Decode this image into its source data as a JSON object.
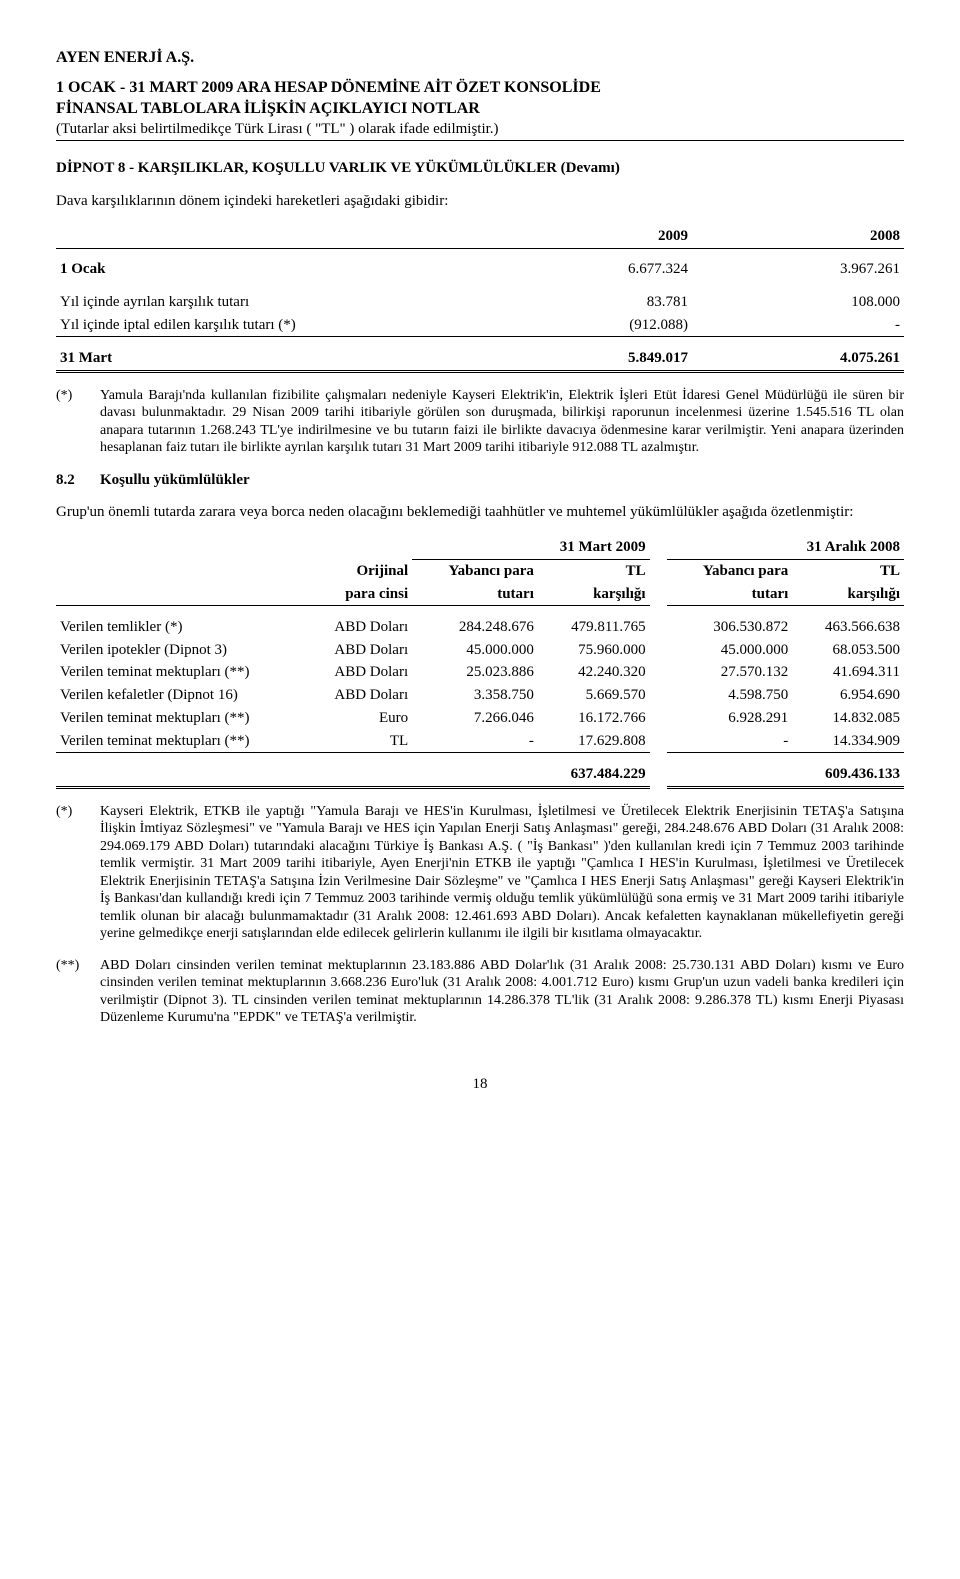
{
  "header": {
    "company": "AYEN ENERJİ A.Ş.",
    "line1": "1 OCAK - 31 MART 2009 ARA HESAP DÖNEMİNE AİT ÖZET KONSOLİDE",
    "line2": "FİNANSAL TABLOLARA İLİŞKİN AÇIKLAYICI NOTLAR",
    "note": "(Tutarlar aksi belirtilmedikçe Türk Lirası ( \"TL\" ) olarak ifade edilmiştir.)"
  },
  "section": {
    "heading": "DİPNOT 8 - KARŞILIKLAR, KOŞULLU VARLIK VE YÜKÜMLÜLÜKLER (Devamı)",
    "intro": "Dava karşılıklarının dönem içindeki hareketleri aşağıdaki gibidir:"
  },
  "tbl1": {
    "col2009": "2009",
    "col2008": "2008",
    "r1": {
      "label": "1 Ocak",
      "a": "6.677.324",
      "b": "3.967.261"
    },
    "r2": {
      "label": "Yıl içinde ayrılan karşılık tutarı",
      "a": "83.781",
      "b": "108.000"
    },
    "r3": {
      "label": "Yıl içinde iptal edilen karşılık tutarı (*)",
      "a": "(912.088)",
      "b": "-"
    },
    "r4": {
      "label": "31 Mart",
      "a": "5.849.017",
      "b": "4.075.261"
    }
  },
  "footnote1": {
    "marker": "(*)",
    "text": "Yamula Barajı'nda kullanılan fizibilite çalışmaları nedeniyle Kayseri Elektrik'in, Elektrik İşleri Etüt İdaresi Genel Müdürlüğü ile süren bir davası bulunmaktadır. 29 Nisan 2009 tarihi itibariyle görülen son duruşmada, bilirkişi raporunun incelenmesi üzerine 1.545.516 TL olan anapara tutarının 1.268.243 TL'ye indirilmesine ve bu tutarın faizi ile birlikte davacıya ödenmesine karar verilmiştir. Yeni anapara üzerinden hesaplanan faiz tutarı ile birlikte ayrılan karşılık tutarı 31 Mart 2009 tarihi itibariyle 912.088 TL azalmıştır."
  },
  "sub8_2": {
    "num": "8.2",
    "title": "Koşullu yükümlülükler",
    "intro": "Grup'un önemli tutarda zarara veya borca neden olacağını beklemediği taahhütler ve muhtemel yükümlülükler aşağıda özetlenmiştir:"
  },
  "tbl2": {
    "period1": "31 Mart 2009",
    "period2": "31 Aralık 2008",
    "h_orij1": "Orijinal",
    "h_orij2": "para cinsi",
    "h_yp1": "Yabancı para",
    "h_yp2": "tutarı",
    "h_tl1": "TL",
    "h_tl2": "karşılığı",
    "rows": [
      {
        "label": "Verilen temlikler (*)",
        "cur": "ABD Doları",
        "a": "284.248.676",
        "b": "479.811.765",
        "c": "306.530.872",
        "d": "463.566.638"
      },
      {
        "label": "Verilen ipotekler (Dipnot 3)",
        "cur": "ABD Doları",
        "a": "45.000.000",
        "b": "75.960.000",
        "c": "45.000.000",
        "d": "68.053.500"
      },
      {
        "label": "Verilen teminat mektupları (**)",
        "cur": "ABD Doları",
        "a": "25.023.886",
        "b": "42.240.320",
        "c": "27.570.132",
        "d": "41.694.311"
      },
      {
        "label": "Verilen kefaletler (Dipnot 16)",
        "cur": "ABD Doları",
        "a": "3.358.750",
        "b": "5.669.570",
        "c": "4.598.750",
        "d": "6.954.690"
      },
      {
        "label": "Verilen teminat mektupları (**)",
        "cur": "Euro",
        "a": "7.266.046",
        "b": "16.172.766",
        "c": "6.928.291",
        "d": "14.832.085"
      },
      {
        "label": "Verilen teminat mektupları (**)",
        "cur": "TL",
        "a": "-",
        "b": "17.629.808",
        "c": "-",
        "d": "14.334.909"
      }
    ],
    "totals": {
      "b": "637.484.229",
      "d": "609.436.133"
    }
  },
  "footnote2": {
    "marker": "(*)",
    "text": "Kayseri Elektrik, ETKB ile yaptığı \"Yamula Barajı ve HES'in Kurulması, İşletilmesi ve Üretilecek Elektrik Enerjisinin TETAŞ'a Satışına İlişkin İmtiyaz Sözleşmesi\" ve \"Yamula Barajı ve HES için Yapılan Enerji Satış Anlaşması\" gereği, 284.248.676 ABD Doları (31 Aralık 2008: 294.069.179 ABD Doları) tutarındaki alacağını Türkiye İş Bankası A.Ş. ( \"İş Bankası\" )'den kullanılan kredi için 7 Temmuz 2003 tarihinde temlik vermiştir. 31 Mart 2009 tarihi itibariyle, Ayen Enerji'nin ETKB ile yaptığı \"Çamlıca I HES'in Kurulması, İşletilmesi ve Üretilecek Elektrik Enerjisinin TETAŞ'a Satışına İzin Verilmesine Dair Sözleşme\" ve \"Çamlıca I HES Enerji Satış Anlaşması\" gereği Kayseri Elektrik'in İş Bankası'dan kullandığı kredi için 7 Temmuz 2003 tarihinde vermiş olduğu temlik yükümlülüğü sona ermiş ve 31 Mart 2009 tarihi itibariyle temlik olunan bir alacağı bulunmamaktadır (31 Aralık 2008: 12.461.693 ABD Doları). Ancak kefaletten kaynaklanan mükellefiyetin gereği yerine gelmedikçe enerji satışlarından elde edilecek gelirlerin kullanımı ile ilgili bir kısıtlama olmayacaktır."
  },
  "footnote3": {
    "marker": "(**)",
    "text": "ABD Doları cinsinden verilen teminat mektuplarının 23.183.886 ABD Dolar'lık (31 Aralık 2008: 25.730.131 ABD Doları) kısmı ve Euro cinsinden verilen teminat mektuplarının 3.668.236 Euro'luk (31 Aralık 2008: 4.001.712 Euro) kısmı Grup'un uzun vadeli banka kredileri için verilmiştir (Dipnot 3). TL cinsinden verilen teminat mektuplarının 14.286.378 TL'lik (31 Aralık 2008: 9.286.378 TL) kısmı Enerji Piyasası Düzenleme Kurumu'na \"EPDK\" ve TETAŞ'a verilmiştir."
  },
  "pageNumber": "18"
}
